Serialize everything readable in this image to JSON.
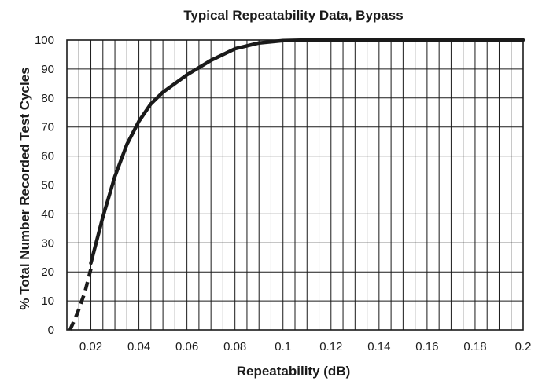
{
  "chart_data": {
    "type": "line",
    "title": "Typical Repeatability Data, Bypass",
    "xlabel": "Repeatability (dB)",
    "ylabel": "% Total Number Recorded Test Cycles",
    "xlim": [
      0.01,
      0.2
    ],
    "ylim": [
      0,
      100
    ],
    "grid": true,
    "x_ticks": [
      {
        "value": 0.02,
        "label": "0.02"
      },
      {
        "value": 0.04,
        "label": "0.04"
      },
      {
        "value": 0.06,
        "label": "0.06"
      },
      {
        "value": 0.08,
        "label": "0.08"
      },
      {
        "value": 0.1,
        "label": "0.1"
      },
      {
        "value": 0.12,
        "label": "0.12"
      },
      {
        "value": 0.14,
        "label": "0.14"
      },
      {
        "value": 0.16,
        "label": "0.16"
      },
      {
        "value": 0.18,
        "label": "0.18"
      },
      {
        "value": 0.2,
        "label": "0.2"
      }
    ],
    "x_gridlines": [
      0.01,
      0.015,
      0.02,
      0.025,
      0.03,
      0.035,
      0.04,
      0.045,
      0.05,
      0.055,
      0.06,
      0.065,
      0.07,
      0.075,
      0.08,
      0.085,
      0.09,
      0.095,
      0.1,
      0.105,
      0.11,
      0.115,
      0.12,
      0.125,
      0.13,
      0.135,
      0.14,
      0.145,
      0.15,
      0.155,
      0.16,
      0.165,
      0.17,
      0.175,
      0.18,
      0.185,
      0.19,
      0.195,
      0.2
    ],
    "y_ticks": [
      {
        "value": 0,
        "label": "0"
      },
      {
        "value": 10,
        "label": "10"
      },
      {
        "value": 20,
        "label": "20"
      },
      {
        "value": 30,
        "label": "30"
      },
      {
        "value": 40,
        "label": "40"
      },
      {
        "value": 50,
        "label": "50"
      },
      {
        "value": 60,
        "label": "60"
      },
      {
        "value": 70,
        "label": "70"
      },
      {
        "value": 80,
        "label": "80"
      },
      {
        "value": 90,
        "label": "90"
      },
      {
        "value": 100,
        "label": "100"
      }
    ],
    "series": [
      {
        "style": "dashed",
        "color": "#1a1a1a",
        "x": [
          0.0113,
          0.0145,
          0.0175,
          0.02
        ],
        "y": [
          0,
          6,
          13,
          21
        ]
      },
      {
        "style": "solid",
        "color": "#1a1a1a",
        "x": [
          0.02,
          0.025,
          0.03,
          0.035,
          0.04,
          0.045,
          0.05,
          0.06,
          0.07,
          0.08,
          0.09,
          0.1,
          0.11,
          0.12,
          0.14,
          0.16,
          0.18,
          0.2
        ],
        "y": [
          23,
          39,
          53,
          64,
          72,
          78,
          82,
          88,
          93,
          97,
          99,
          99.8,
          100,
          100,
          100,
          100,
          100,
          100
        ]
      }
    ]
  }
}
